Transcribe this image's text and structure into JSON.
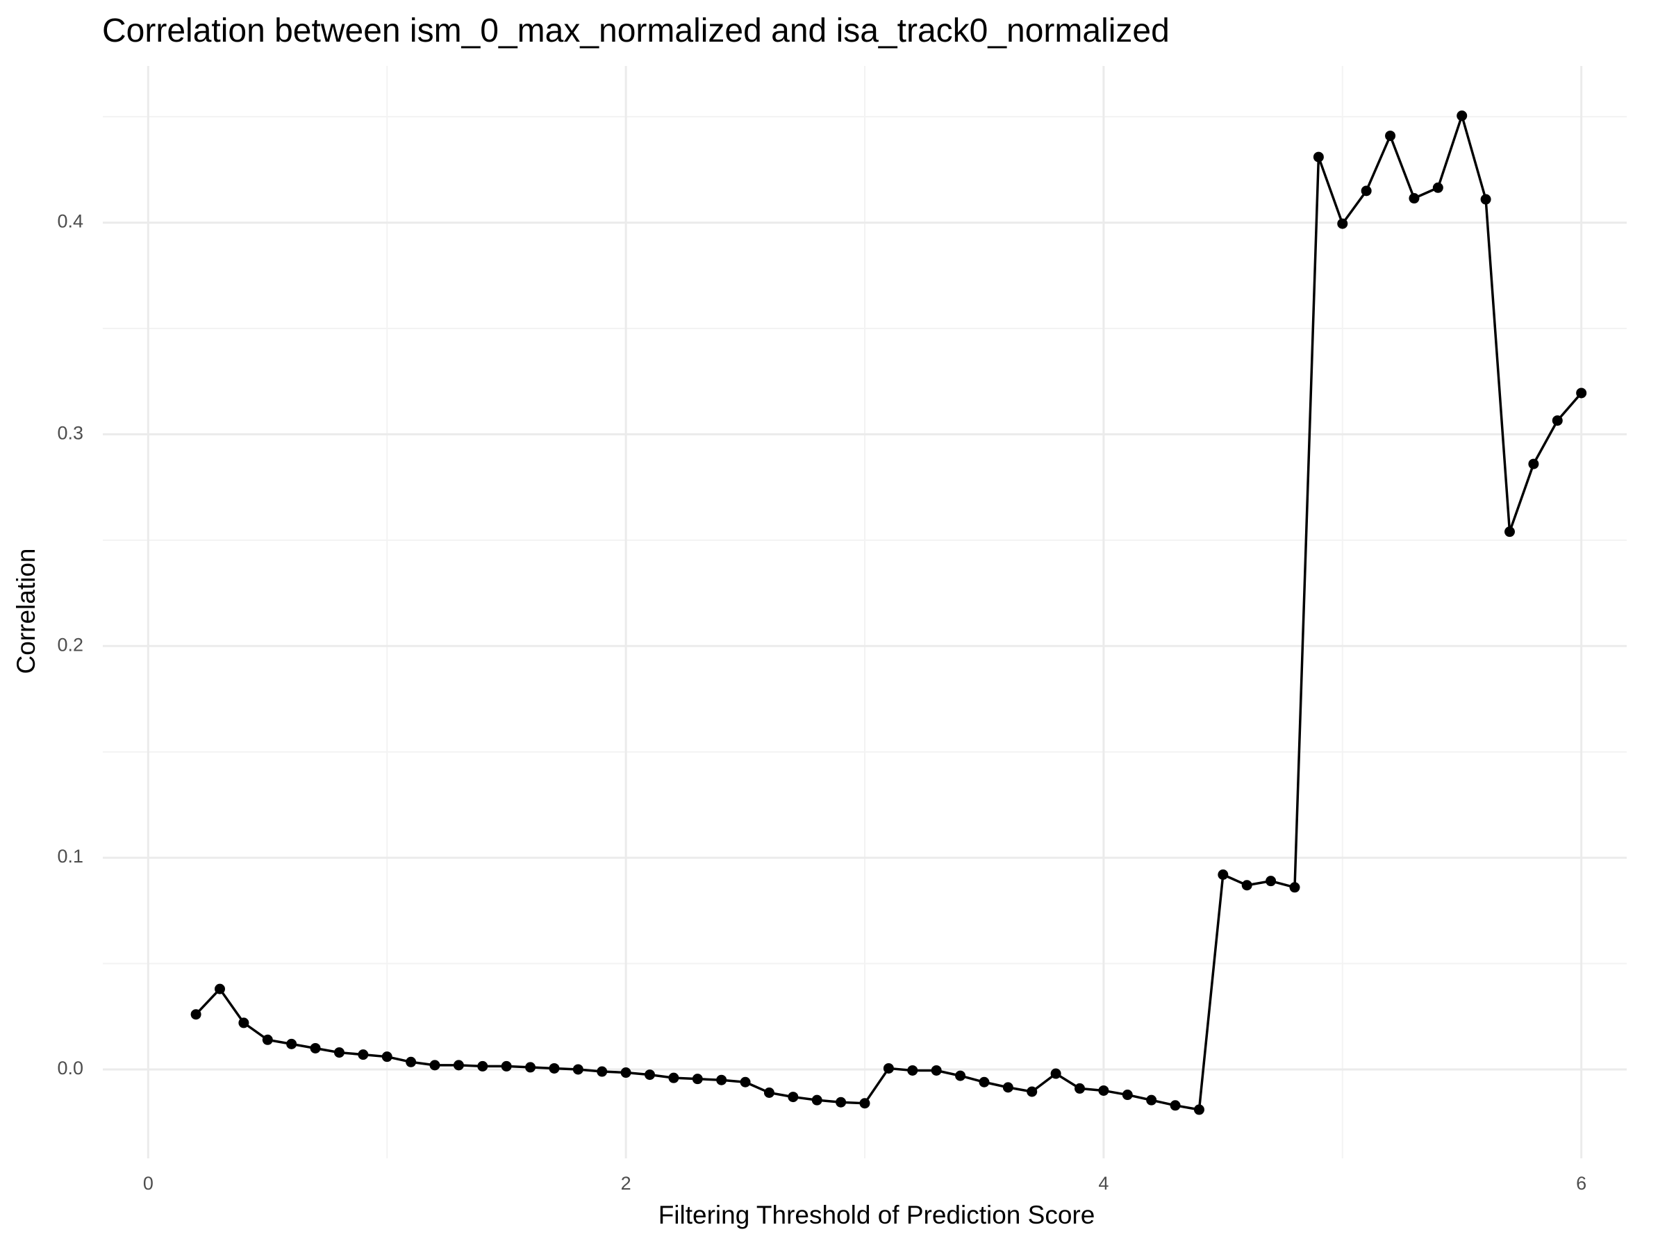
{
  "chart_data": {
    "type": "line",
    "title": "Correlation between ism_0_max_normalized and isa_track0_normalized",
    "x_label": "Filtering Threshold of Prediction Score",
    "y_label": "Correlation",
    "x": [
      0.2,
      0.3,
      0.4,
      0.5,
      0.6,
      0.7,
      0.8,
      0.9,
      1.0,
      1.1,
      1.2,
      1.3,
      1.4,
      1.5,
      1.6,
      1.7,
      1.8,
      1.9,
      2.0,
      2.1,
      2.2,
      2.3,
      2.4,
      2.5,
      2.6,
      2.7,
      2.8,
      2.9,
      3.0,
      3.1,
      3.2,
      3.3,
      3.4,
      3.5,
      3.6,
      3.7,
      3.8,
      3.9,
      4.0,
      4.1,
      4.2,
      4.3,
      4.4,
      4.5,
      4.6,
      4.7,
      4.8,
      4.9,
      5.0,
      5.1,
      5.2,
      5.3,
      5.4,
      5.5,
      5.6,
      5.7,
      5.8,
      5.9,
      6.0
    ],
    "series": [
      {
        "name": "Correlation",
        "color": "#000000",
        "values": [
          0.026,
          0.038,
          0.022,
          0.014,
          0.012,
          0.01,
          0.008,
          0.007,
          0.006,
          0.0035,
          0.002,
          0.002,
          0.0015,
          0.0015,
          0.001,
          0.0005,
          0.0,
          -0.001,
          -0.0015,
          -0.0025,
          -0.004,
          -0.0045,
          -0.005,
          -0.006,
          -0.011,
          -0.013,
          -0.0145,
          -0.0155,
          -0.016,
          0.0005,
          -0.0005,
          -0.0005,
          -0.003,
          -0.006,
          -0.0085,
          -0.0105,
          -0.002,
          -0.009,
          -0.01,
          -0.012,
          -0.0145,
          -0.017,
          -0.019,
          0.092,
          0.087,
          0.089,
          0.086,
          0.431,
          0.3995,
          0.415,
          0.441,
          0.4115,
          0.4165,
          0.4505,
          0.411,
          0.254,
          0.286,
          0.3065,
          0.3195
        ]
      }
    ],
    "xlim": [
      -0.19,
      6.19
    ],
    "ylim": [
      -0.042,
      0.474
    ],
    "xticks": [
      0,
      2,
      4,
      6
    ],
    "yticks": [
      {
        "value": 0,
        "label": "0.0"
      },
      0.1,
      0.2,
      0.3,
      0.4
    ],
    "minor_xticks": [
      1,
      3,
      5
    ],
    "minor_yticks": [
      0.05,
      0.15,
      0.25,
      0.35,
      0.45
    ],
    "grid": true
  }
}
